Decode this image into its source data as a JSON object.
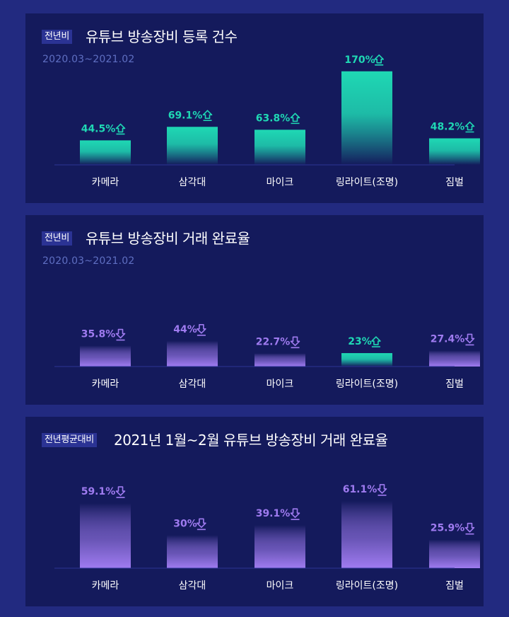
{
  "colors": {
    "up": "#1fd8b4",
    "down": "#9f7bf0",
    "background": "#222a80",
    "panel": "#141a5c",
    "badge": "#2b3394",
    "subtitle": "#5f6fc2"
  },
  "panels": [
    {
      "badge": "전년비",
      "title": "유튜브 방송장비 등록 건수",
      "subtitle": "2020.03~2021.02"
    },
    {
      "badge": "전년비",
      "title": "유튜브 방송장비 거래 완료율",
      "subtitle": "2020.03~2021.02"
    },
    {
      "badge": "전년평균대비",
      "title": "2021년 1월~2월 유튜브 방송장비 거래 완료율",
      "subtitle": ""
    }
  ],
  "chart_data": [
    {
      "type": "bar",
      "title": "유튜브 방송장비 등록 건수",
      "categories": [
        "카메라",
        "삼각대",
        "마이크",
        "링라이트(조명)",
        "짐벌"
      ],
      "values": [
        44.5,
        69.1,
        63.8,
        170,
        48.2
      ],
      "labels": [
        "44.5%",
        "69.1%",
        "63.8%",
        "170%",
        "48.2%"
      ],
      "directions": [
        "up",
        "up",
        "up",
        "up",
        "up"
      ],
      "ylim": [
        0,
        180
      ]
    },
    {
      "type": "bar",
      "title": "유튜브 방송장비 거래 완료율",
      "categories": [
        "카메라",
        "삼각대",
        "마이크",
        "링라이트(조명)",
        "짐벌"
      ],
      "values": [
        35.8,
        44,
        22.7,
        23,
        27.4
      ],
      "labels": [
        "35.8%",
        "44%",
        "22.7%",
        "23%",
        "27.4%"
      ],
      "directions": [
        "down",
        "down",
        "down",
        "up",
        "down"
      ],
      "ylim": [
        0,
        170
      ]
    },
    {
      "type": "bar",
      "title": "2021년 1월~2월 유튜브 방송장비 거래 완료율",
      "categories": [
        "카메라",
        "삼각대",
        "마이크",
        "링라이트(조명)",
        "짐벌"
      ],
      "values": [
        59.1,
        30,
        39.1,
        61.1,
        25.9
      ],
      "labels": [
        "59.1%",
        "30%",
        "39.1%",
        "61.1%",
        "25.9%"
      ],
      "directions": [
        "down",
        "down",
        "down",
        "down",
        "down"
      ],
      "ylim": [
        0,
        90
      ]
    }
  ]
}
